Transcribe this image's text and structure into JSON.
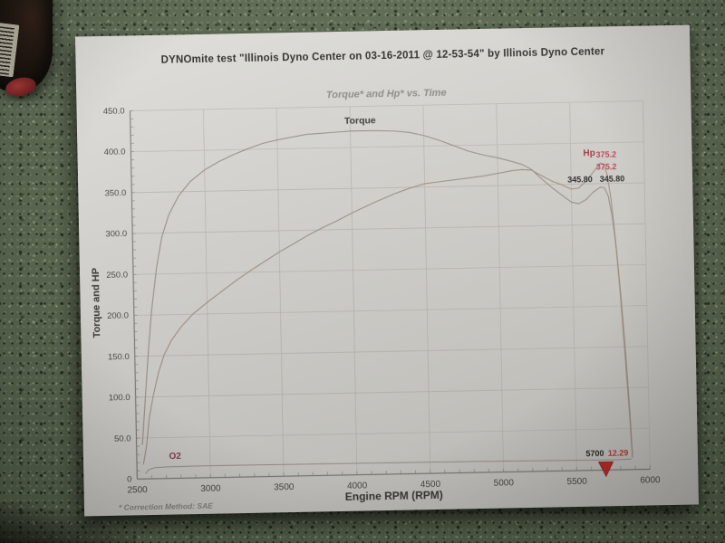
{
  "photo": {
    "countertop_color": "#5b6851",
    "paper_color": "#d6d5d0"
  },
  "paper": {
    "header_title": "DYNOmite test \"Illinois Dyno Center on 03-16-2011 @ 12-53-54\" by Illinois Dyno Center",
    "footnote": "* Correction Method: SAE"
  },
  "chart_data": {
    "type": "line",
    "title": "Torque* and Hp* vs. Time",
    "xlabel": "Engine RPM (RPM)",
    "ylabel": "Torque and HP",
    "xlim": [
      2500,
      6000
    ],
    "ylim": [
      0,
      450
    ],
    "x_minor_step": 100,
    "y_minor_step": 10,
    "grid": true,
    "legend": "none",
    "xticks": [
      {
        "v": 2500,
        "label": "2500"
      },
      {
        "v": 3000,
        "label": "3000"
      },
      {
        "v": 3500,
        "label": "3500"
      },
      {
        "v": 4000,
        "label": "4000"
      },
      {
        "v": 4500,
        "label": "4500"
      },
      {
        "v": 5000,
        "label": "5000"
      },
      {
        "v": 5500,
        "label": "5500"
      },
      {
        "v": 6000,
        "label": "6000"
      }
    ],
    "yticks": [
      {
        "v": 0,
        "label": "0"
      },
      {
        "v": 50,
        "label": "50.0"
      },
      {
        "v": 100,
        "label": "100.0"
      },
      {
        "v": 150,
        "label": "150.0"
      },
      {
        "v": 200,
        "label": "200.0"
      },
      {
        "v": 250,
        "label": "250.0"
      },
      {
        "v": 300,
        "label": "300.0"
      },
      {
        "v": 350,
        "label": "350.0"
      },
      {
        "v": 400,
        "label": "400.0"
      },
      {
        "v": 450,
        "label": "450.0"
      }
    ],
    "colors": {
      "grid": "#bdb8b2",
      "axis_line": "#85827c",
      "axis_text": "#4c4b47",
      "chart_title": "#8f8e8a",
      "title_text": "#3a3a36"
    },
    "series": [
      {
        "name": "Torque",
        "color": "#9b9088",
        "width": 1.1,
        "points": [
          [
            2540,
            42
          ],
          [
            2560,
            85
          ],
          [
            2590,
            150
          ],
          [
            2620,
            205
          ],
          [
            2660,
            258
          ],
          [
            2700,
            295
          ],
          [
            2750,
            322
          ],
          [
            2820,
            345
          ],
          [
            2900,
            362
          ],
          [
            3000,
            376
          ],
          [
            3100,
            386
          ],
          [
            3200,
            394
          ],
          [
            3300,
            401
          ],
          [
            3400,
            407
          ],
          [
            3500,
            411
          ],
          [
            3600,
            414
          ],
          [
            3700,
            417
          ],
          [
            3800,
            418
          ],
          [
            3900,
            419
          ],
          [
            4000,
            420
          ],
          [
            4150,
            420
          ],
          [
            4300,
            419
          ],
          [
            4400,
            417
          ],
          [
            4500,
            413
          ],
          [
            4600,
            407
          ],
          [
            4700,
            400
          ],
          [
            4800,
            393
          ],
          [
            4900,
            388
          ],
          [
            5000,
            384
          ],
          [
            5100,
            379
          ],
          [
            5170,
            375
          ],
          [
            5230,
            369
          ],
          [
            5300,
            357
          ],
          [
            5370,
            346
          ],
          [
            5440,
            336
          ],
          [
            5500,
            328
          ],
          [
            5550,
            326
          ],
          [
            5600,
            331
          ],
          [
            5650,
            340
          ],
          [
            5700,
            345.8
          ],
          [
            5725,
            345
          ],
          [
            5750,
            335
          ],
          [
            5775,
            310
          ],
          [
            5800,
            268
          ],
          [
            5825,
            210
          ],
          [
            5850,
            140
          ],
          [
            5870,
            70
          ],
          [
            5882,
            18
          ]
        ]
      },
      {
        "name": "Hp",
        "color": "#a09184",
        "width": 1.1,
        "points": [
          [
            2545,
            18
          ],
          [
            2570,
            42
          ],
          [
            2590,
            74
          ],
          [
            2620,
            101
          ],
          [
            2660,
            130
          ],
          [
            2700,
            151
          ],
          [
            2750,
            168
          ],
          [
            2820,
            185
          ],
          [
            2900,
            200
          ],
          [
            3000,
            214
          ],
          [
            3100,
            227
          ],
          [
            3200,
            240
          ],
          [
            3300,
            252
          ],
          [
            3400,
            263
          ],
          [
            3500,
            274
          ],
          [
            3600,
            284
          ],
          [
            3700,
            294
          ],
          [
            3800,
            303
          ],
          [
            3900,
            311
          ],
          [
            4000,
            320
          ],
          [
            4150,
            332
          ],
          [
            4300,
            343
          ],
          [
            4400,
            349
          ],
          [
            4500,
            354
          ],
          [
            4600,
            356
          ],
          [
            4700,
            358
          ],
          [
            4800,
            360
          ],
          [
            4900,
            362
          ],
          [
            5000,
            365
          ],
          [
            5100,
            368
          ],
          [
            5170,
            369
          ],
          [
            5230,
            368
          ],
          [
            5300,
            361
          ],
          [
            5370,
            354
          ],
          [
            5440,
            349
          ],
          [
            5500,
            344
          ],
          [
            5550,
            345
          ],
          [
            5600,
            353
          ],
          [
            5650,
            364
          ],
          [
            5700,
            375.2
          ],
          [
            5720,
            374
          ],
          [
            5745,
            362
          ],
          [
            5770,
            330
          ],
          [
            5795,
            280
          ],
          [
            5820,
            215
          ],
          [
            5845,
            140
          ],
          [
            5868,
            65
          ],
          [
            5882,
            15
          ]
        ]
      },
      {
        "name": "O2",
        "color": "#a18e88",
        "width": 1,
        "points": [
          [
            2560,
            7
          ],
          [
            2580,
            11
          ],
          [
            2620,
            13.5
          ],
          [
            2700,
            14.2
          ],
          [
            2900,
            14.5
          ],
          [
            3200,
            14.5
          ],
          [
            3600,
            14.3
          ],
          [
            4000,
            14
          ],
          [
            4400,
            13.8
          ],
          [
            4800,
            13.5
          ],
          [
            5200,
            13
          ],
          [
            5500,
            12.6
          ],
          [
            5700,
            12.29
          ],
          [
            5800,
            12.5
          ],
          [
            5875,
            13
          ]
        ]
      }
    ],
    "annotations": [
      {
        "text": "Torque",
        "x": 3960,
        "y": 429,
        "color": "#3c3c38",
        "bold": true,
        "size": 10.5,
        "anchor": "start"
      },
      {
        "text": "Hp",
        "x": 5585,
        "y": 384,
        "color": "#a63a4a",
        "bold": true,
        "size": 10,
        "anchor": "start"
      },
      {
        "text": "375.2",
        "x": 5672,
        "y": 382,
        "color": "#c2495c",
        "bold": true,
        "size": 9,
        "anchor": "start"
      },
      {
        "text": "375.2",
        "x": 5672,
        "y": 367,
        "color": "#c2495c",
        "bold": true,
        "size": 9,
        "anchor": "start"
      },
      {
        "text": "345.80",
        "x": 5560,
        "y": 352,
        "color": "#2e2d2b",
        "bold": true,
        "size": 9,
        "anchor": "middle"
      },
      {
        "text": "345.80",
        "x": 5780,
        "y": 352,
        "color": "#2e2d2b",
        "bold": true,
        "size": 9,
        "anchor": "middle"
      },
      {
        "text": "O2",
        "x": 2720,
        "y": 24,
        "color": "#8a4152",
        "bold": true,
        "size": 10,
        "anchor": "start"
      },
      {
        "text": "5700",
        "x": 5688,
        "y": 17,
        "color": "#2a2a28",
        "bold": true,
        "size": 9,
        "anchor": "end"
      },
      {
        "text": "12.29",
        "x": 5715,
        "y": 17,
        "color": "#c23a3a",
        "bold": true,
        "size": 9,
        "anchor": "start"
      }
    ],
    "marker": {
      "x": 5700,
      "y": 0,
      "shape": "triangle-down",
      "color": "#c32b2b"
    }
  }
}
